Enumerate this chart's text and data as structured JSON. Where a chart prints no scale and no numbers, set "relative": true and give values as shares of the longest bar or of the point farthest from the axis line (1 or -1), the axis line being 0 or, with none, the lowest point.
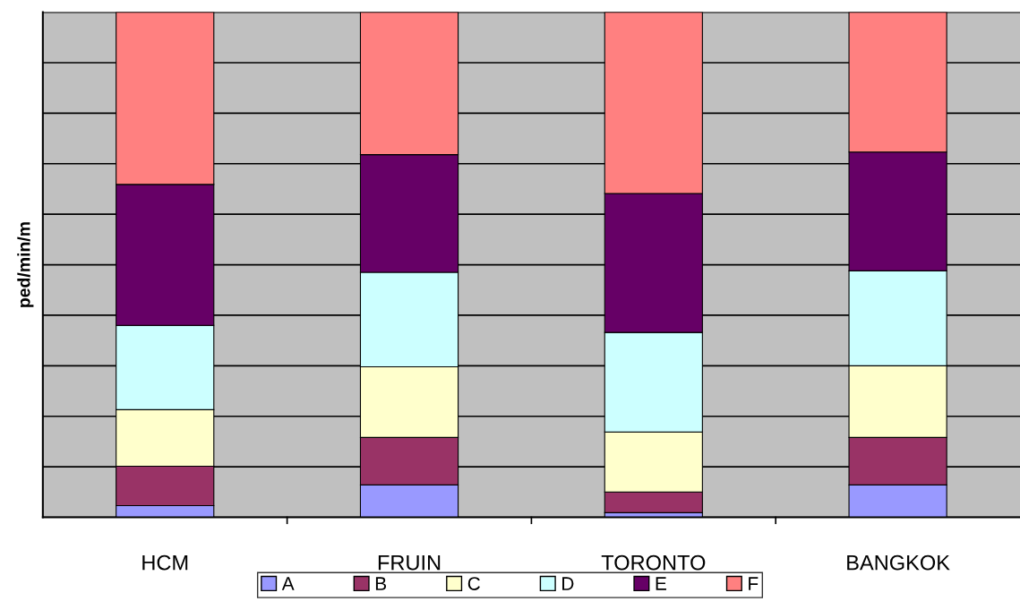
{
  "chart_data": {
    "type": "bar",
    "stacked": true,
    "relative": true,
    "ylabel": "ped/min/m",
    "categories": [
      "HCM",
      "FRUIN",
      "TORONTO",
      "BANGKOK"
    ],
    "series": [
      {
        "name": "A",
        "color": "#9999ff",
        "values": [
          0.023,
          0.064,
          0.009,
          0.064
        ]
      },
      {
        "name": "B",
        "color": "#993366",
        "values": [
          0.078,
          0.094,
          0.041,
          0.094
        ]
      },
      {
        "name": "C",
        "color": "#ffffcc",
        "values": [
          0.112,
          0.14,
          0.119,
          0.142
        ]
      },
      {
        "name": "D",
        "color": "#ccffff",
        "values": [
          0.167,
          0.187,
          0.197,
          0.188
        ]
      },
      {
        "name": "E",
        "color": "#660066",
        "values": [
          0.279,
          0.233,
          0.275,
          0.235
        ]
      },
      {
        "name": "F",
        "color": "#ff8080",
        "values": [
          0.341,
          0.282,
          0.359,
          0.277
        ]
      }
    ],
    "grid": "y",
    "legend": "bottom"
  }
}
